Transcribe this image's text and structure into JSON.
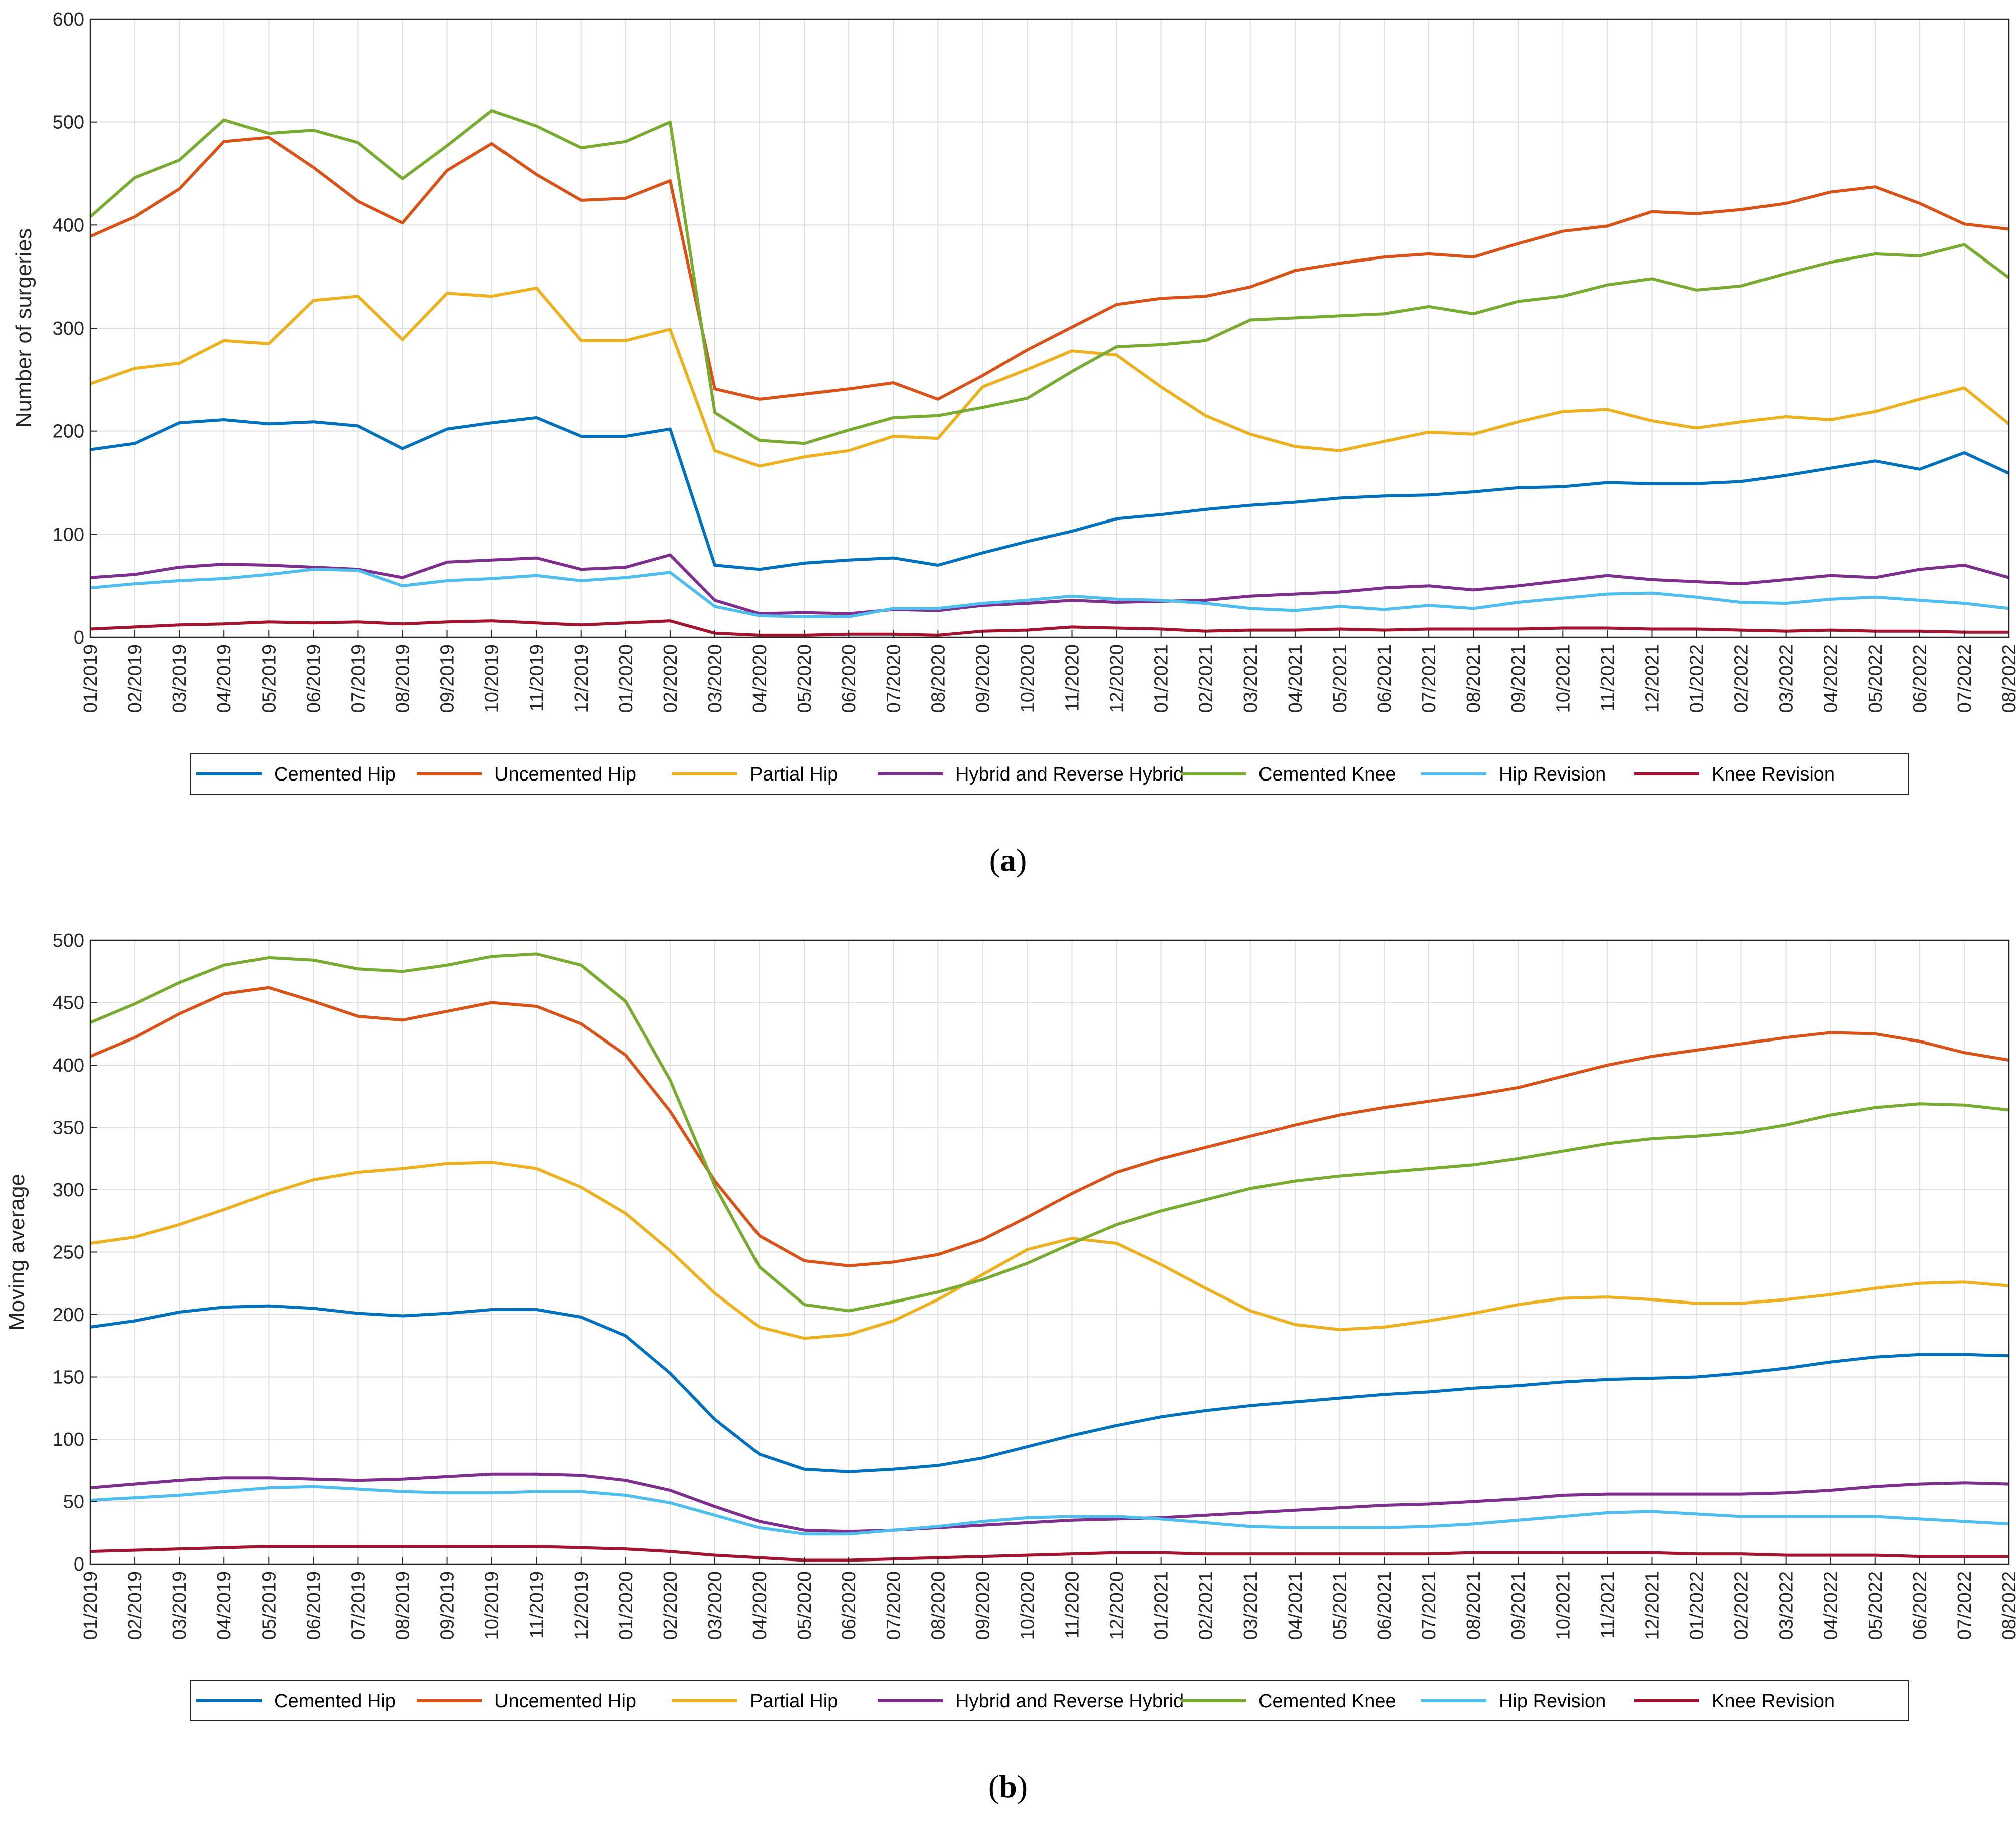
{
  "chart_data": [
    {
      "type": "line",
      "caption_letter": "a",
      "title": "",
      "xlabel": "",
      "ylabel": "Number of surgeries",
      "ylim": [
        0,
        600
      ],
      "yticks": [
        0,
        100,
        200,
        300,
        400,
        500,
        600
      ],
      "grid": true,
      "legend_placement": "bottom",
      "categories": [
        "01/2019",
        "02/2019",
        "03/2019",
        "04/2019",
        "05/2019",
        "06/2019",
        "07/2019",
        "08/2019",
        "09/2019",
        "10/2019",
        "11/2019",
        "12/2019",
        "01/2020",
        "02/2020",
        "03/2020",
        "04/2020",
        "05/2020",
        "06/2020",
        "07/2020",
        "08/2020",
        "09/2020",
        "10/2020",
        "11/2020",
        "12/2020",
        "01/2021",
        "02/2021",
        "03/2021",
        "04/2021",
        "05/2021",
        "06/2021",
        "07/2021",
        "08/2021",
        "09/2021",
        "10/2021",
        "11/2021",
        "12/2021",
        "01/2022",
        "02/2022",
        "03/2022",
        "04/2022",
        "05/2022",
        "06/2022",
        "07/2022",
        "08/2022"
      ],
      "series": [
        {
          "name": "Cemented Hip",
          "color": "#0072BD",
          "values": [
            182,
            188,
            208,
            211,
            207,
            209,
            205,
            183,
            202,
            208,
            213,
            195,
            195,
            202,
            70,
            66,
            72,
            75,
            77,
            70,
            82,
            93,
            103,
            115,
            119,
            124,
            128,
            131,
            135,
            137,
            138,
            141,
            145,
            146,
            150,
            149,
            149,
            151,
            157,
            164,
            171,
            163,
            179,
            159
          ]
        },
        {
          "name": "Uncemented Hip",
          "color": "#D95319",
          "values": [
            389,
            408,
            435,
            481,
            485,
            456,
            423,
            402,
            453,
            479,
            449,
            424,
            426,
            443,
            241,
            231,
            236,
            241,
            247,
            231,
            254,
            279,
            301,
            323,
            329,
            331,
            340,
            356,
            363,
            369,
            372,
            369,
            382,
            394,
            399,
            413,
            411,
            415,
            421,
            432,
            437,
            421,
            401,
            396
          ]
        },
        {
          "name": "Partial Hip",
          "color": "#EDB120",
          "values": [
            246,
            261,
            266,
            288,
            285,
            327,
            331,
            289,
            334,
            331,
            339,
            288,
            288,
            299,
            181,
            166,
            175,
            181,
            195,
            193,
            243,
            260,
            278,
            274,
            243,
            215,
            197,
            185,
            181,
            190,
            199,
            197,
            209,
            219,
            221,
            210,
            203,
            209,
            214,
            211,
            219,
            231,
            242,
            207
          ]
        },
        {
          "name": "Hybrid and Reverse Hybrid",
          "color": "#7E2F8E",
          "values": [
            58,
            61,
            68,
            71,
            70,
            68,
            66,
            58,
            73,
            75,
            77,
            66,
            68,
            80,
            36,
            23,
            24,
            23,
            27,
            26,
            31,
            33,
            36,
            34,
            35,
            36,
            40,
            42,
            44,
            48,
            50,
            46,
            50,
            55,
            60,
            56,
            54,
            52,
            56,
            60,
            58,
            66,
            70,
            58
          ]
        },
        {
          "name": "Cemented Knee",
          "color": "#77AC30",
          "values": [
            408,
            446,
            463,
            502,
            489,
            492,
            480,
            445,
            477,
            511,
            496,
            475,
            481,
            500,
            218,
            191,
            188,
            201,
            213,
            215,
            223,
            232,
            258,
            282,
            284,
            288,
            308,
            310,
            312,
            314,
            321,
            314,
            326,
            331,
            342,
            348,
            337,
            341,
            353,
            364,
            372,
            370,
            381,
            349
          ]
        },
        {
          "name": "Hip Revision",
          "color": "#4DBEEE",
          "values": [
            48,
            52,
            55,
            57,
            61,
            66,
            65,
            50,
            55,
            57,
            60,
            55,
            58,
            63,
            30,
            21,
            20,
            20,
            28,
            28,
            33,
            36,
            40,
            37,
            36,
            33,
            28,
            26,
            30,
            27,
            31,
            28,
            34,
            38,
            42,
            43,
            39,
            34,
            33,
            37,
            39,
            36,
            33,
            28
          ]
        },
        {
          "name": "Knee Revision",
          "color": "#A2142F",
          "values": [
            8,
            10,
            12,
            13,
            15,
            14,
            15,
            13,
            15,
            16,
            14,
            12,
            14,
            16,
            4,
            2,
            2,
            3,
            3,
            2,
            6,
            7,
            10,
            9,
            8,
            6,
            7,
            7,
            8,
            7,
            8,
            8,
            8,
            9,
            9,
            8,
            8,
            7,
            6,
            7,
            6,
            6,
            5,
            5
          ]
        }
      ]
    },
    {
      "type": "line",
      "caption_letter": "b",
      "title": "",
      "xlabel": "",
      "ylabel": "Moving average",
      "ylim": [
        0,
        500
      ],
      "yticks": [
        0,
        50,
        100,
        150,
        200,
        250,
        300,
        350,
        400,
        450,
        500
      ],
      "grid": true,
      "legend_placement": "bottom",
      "categories": [
        "01/2019",
        "02/2019",
        "03/2019",
        "04/2019",
        "05/2019",
        "06/2019",
        "07/2019",
        "08/2019",
        "09/2019",
        "10/2019",
        "11/2019",
        "12/2019",
        "01/2020",
        "02/2020",
        "03/2020",
        "04/2020",
        "05/2020",
        "06/2020",
        "07/2020",
        "08/2020",
        "09/2020",
        "10/2020",
        "11/2020",
        "12/2020",
        "01/2021",
        "02/2021",
        "03/2021",
        "04/2021",
        "05/2021",
        "06/2021",
        "07/2021",
        "08/2021",
        "09/2021",
        "10/2021",
        "11/2021",
        "12/2021",
        "01/2022",
        "02/2022",
        "03/2022",
        "04/2022",
        "05/2022",
        "06/2022",
        "07/2022",
        "08/2022"
      ],
      "series": [
        {
          "name": "Cemented Hip",
          "color": "#0072BD",
          "values": [
            190,
            195,
            202,
            206,
            207,
            205,
            201,
            199,
            201,
            204,
            204,
            198,
            183,
            153,
            116,
            88,
            76,
            74,
            76,
            79,
            85,
            94,
            103,
            111,
            118,
            123,
            127,
            130,
            133,
            136,
            138,
            141,
            143,
            146,
            148,
            149,
            150,
            153,
            157,
            162,
            166,
            168,
            168,
            167
          ]
        },
        {
          "name": "Uncemented Hip",
          "color": "#D95319",
          "values": [
            407,
            422,
            441,
            457,
            462,
            451,
            439,
            436,
            443,
            450,
            447,
            433,
            408,
            363,
            307,
            263,
            243,
            239,
            242,
            248,
            260,
            278,
            297,
            314,
            325,
            334,
            343,
            352,
            360,
            366,
            371,
            376,
            382,
            391,
            400,
            407,
            412,
            417,
            422,
            426,
            425,
            419,
            410,
            404
          ]
        },
        {
          "name": "Partial Hip",
          "color": "#EDB120",
          "values": [
            257,
            262,
            272,
            284,
            297,
            308,
            314,
            317,
            321,
            322,
            317,
            302,
            281,
            251,
            217,
            190,
            181,
            184,
            195,
            212,
            232,
            252,
            261,
            257,
            240,
            221,
            203,
            192,
            188,
            190,
            195,
            201,
            208,
            213,
            214,
            212,
            209,
            209,
            212,
            216,
            221,
            225,
            226,
            223
          ]
        },
        {
          "name": "Hybrid and Reverse Hybrid",
          "color": "#7E2F8E",
          "values": [
            61,
            64,
            67,
            69,
            69,
            68,
            67,
            68,
            70,
            72,
            72,
            71,
            67,
            59,
            46,
            34,
            27,
            26,
            27,
            29,
            31,
            33,
            35,
            36,
            37,
            39,
            41,
            43,
            45,
            47,
            48,
            50,
            52,
            55,
            56,
            56,
            56,
            56,
            57,
            59,
            62,
            64,
            65,
            64
          ]
        },
        {
          "name": "Cemented Knee",
          "color": "#77AC30",
          "values": [
            434,
            449,
            466,
            480,
            486,
            484,
            477,
            475,
            480,
            487,
            489,
            480,
            451,
            388,
            303,
            238,
            208,
            203,
            210,
            218,
            228,
            241,
            257,
            272,
            283,
            292,
            301,
            307,
            311,
            314,
            317,
            320,
            325,
            331,
            337,
            341,
            343,
            346,
            352,
            360,
            366,
            369,
            368,
            364
          ]
        },
        {
          "name": "Hip Revision",
          "color": "#4DBEEE",
          "values": [
            51,
            53,
            55,
            58,
            61,
            62,
            60,
            58,
            57,
            57,
            58,
            58,
            55,
            49,
            39,
            29,
            24,
            24,
            27,
            30,
            34,
            37,
            38,
            38,
            36,
            33,
            30,
            29,
            29,
            29,
            30,
            32,
            35,
            38,
            41,
            42,
            40,
            38,
            38,
            38,
            38,
            36,
            34,
            32
          ]
        },
        {
          "name": "Knee Revision",
          "color": "#A2142F",
          "values": [
            10,
            11,
            12,
            13,
            14,
            14,
            14,
            14,
            14,
            14,
            14,
            13,
            12,
            10,
            7,
            5,
            3,
            3,
            4,
            5,
            6,
            7,
            8,
            9,
            9,
            8,
            8,
            8,
            8,
            8,
            8,
            9,
            9,
            9,
            9,
            9,
            8,
            8,
            7,
            7,
            7,
            6,
            6,
            6
          ]
        }
      ]
    }
  ]
}
